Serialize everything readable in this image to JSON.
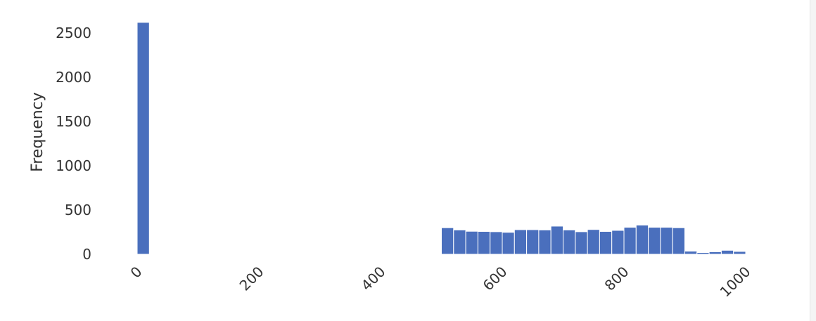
{
  "chart_data": {
    "type": "bar",
    "ylabel": "Frequency",
    "xlabel": "",
    "bar_color": "#4a6fbd",
    "x_ticks": [
      0,
      200,
      400,
      600,
      800,
      1000
    ],
    "y_ticks": [
      0,
      500,
      1000,
      1500,
      2000,
      2500
    ],
    "xlim": [
      -25,
      1050
    ],
    "ylim": [
      0,
      2700
    ],
    "bin_width": 20,
    "bins": [
      {
        "x": 0,
        "value": 2620
      },
      {
        "x": 500,
        "value": 300
      },
      {
        "x": 520,
        "value": 275
      },
      {
        "x": 540,
        "value": 260
      },
      {
        "x": 560,
        "value": 258
      },
      {
        "x": 580,
        "value": 255
      },
      {
        "x": 600,
        "value": 248
      },
      {
        "x": 620,
        "value": 278
      },
      {
        "x": 640,
        "value": 278
      },
      {
        "x": 660,
        "value": 275
      },
      {
        "x": 680,
        "value": 318
      },
      {
        "x": 700,
        "value": 275
      },
      {
        "x": 720,
        "value": 255
      },
      {
        "x": 740,
        "value": 280
      },
      {
        "x": 760,
        "value": 258
      },
      {
        "x": 780,
        "value": 270
      },
      {
        "x": 800,
        "value": 305
      },
      {
        "x": 820,
        "value": 330
      },
      {
        "x": 840,
        "value": 305
      },
      {
        "x": 860,
        "value": 305
      },
      {
        "x": 880,
        "value": 300
      },
      {
        "x": 900,
        "value": 35
      },
      {
        "x": 920,
        "value": 20
      },
      {
        "x": 940,
        "value": 28
      },
      {
        "x": 960,
        "value": 45
      },
      {
        "x": 980,
        "value": 32
      }
    ]
  }
}
